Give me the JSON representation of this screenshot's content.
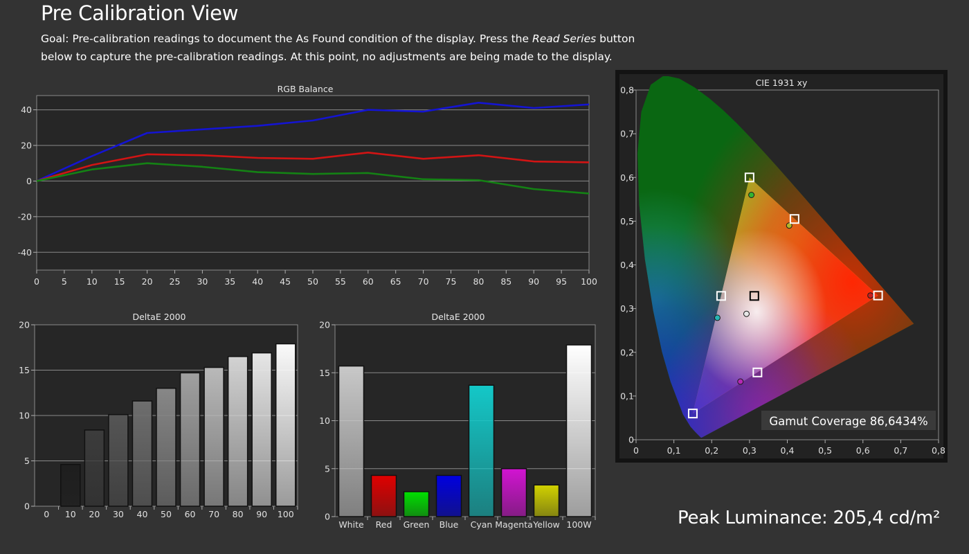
{
  "page": {
    "title": "Pre Calibration View",
    "goal_prefix": "Goal: Pre-calibration readings to document the As Found condition of the display. Press the ",
    "goal_button": "Read Series",
    "goal_suffix": " button below to capture the pre-calibration readings. At this point, no adjustments are being made to the display.",
    "peak_luminance": "Peak Luminance: 205,4 cd/m²"
  },
  "chart_data": [
    {
      "id": "rgb_balance",
      "type": "line",
      "title": "RGB Balance",
      "x": [
        0,
        10,
        20,
        30,
        40,
        50,
        60,
        70,
        80,
        90,
        100
      ],
      "x_ticks": [
        "0",
        "5",
        "10",
        "15",
        "20",
        "25",
        "30",
        "35",
        "40",
        "45",
        "50",
        "55",
        "60",
        "65",
        "70",
        "75",
        "80",
        "85",
        "90",
        "95",
        "100"
      ],
      "y_ticks": [
        "40",
        "20",
        "0",
        "-20",
        "-40"
      ],
      "xlim": [
        0,
        100
      ],
      "ylim": [
        -50,
        48
      ],
      "grid": true,
      "series": [
        {
          "color": "#1414d2",
          "values": [
            0,
            14,
            27,
            29,
            31,
            34,
            40,
            39,
            44,
            41,
            43
          ]
        },
        {
          "color": "#d21414",
          "values": [
            0,
            9,
            15,
            14.5,
            13,
            12.5,
            16,
            12.5,
            14.5,
            11,
            10.5
          ]
        },
        {
          "color": "#148214",
          "values": [
            0,
            6.5,
            10,
            8,
            5,
            4,
            4.5,
            1,
            0.5,
            -4.5,
            -7
          ]
        }
      ]
    },
    {
      "id": "deltae_grayscale",
      "type": "bar",
      "title": "DeltaE 2000",
      "categories": [
        "0",
        "10",
        "20",
        "30",
        "40",
        "50",
        "60",
        "70",
        "80",
        "90",
        "100"
      ],
      "values": [
        0,
        4.6,
        8.4,
        10.1,
        11.6,
        13.0,
        14.7,
        15.3,
        16.5,
        16.9,
        17.9
      ],
      "colors": [
        "#000000",
        "#1e1e1e",
        "#3c3c3c",
        "#555555",
        "#6e6e6e",
        "#878787",
        "#a0a0a0",
        "#b9b9b9",
        "#d2d2d2",
        "#e6e6e6",
        "#fafafa"
      ],
      "y_ticks": [
        "20",
        "15",
        "10",
        "5",
        "0"
      ],
      "ylim": [
        0,
        20
      ],
      "grid": true
    },
    {
      "id": "deltae_colors",
      "type": "bar",
      "title": "DeltaE 2000",
      "categories": [
        "White",
        "Red",
        "Green",
        "Blue",
        "Cyan",
        "Magenta",
        "Yellow",
        "100W"
      ],
      "values": [
        15.7,
        4.3,
        2.6,
        4.3,
        13.7,
        5.0,
        3.3,
        17.9
      ],
      "colors": [
        "#c8c8c8",
        "#e00000",
        "#00e000",
        "#0000e0",
        "#14c8c8",
        "#d214d2",
        "#d2d200",
        "#ffffff"
      ],
      "y_ticks": [
        "20",
        "15",
        "10",
        "5",
        "0"
      ],
      "ylim": [
        0,
        20
      ],
      "grid": true
    },
    {
      "id": "cie1931",
      "type": "scatter",
      "title": "CIE 1931 xy",
      "x_ticks": [
        "0",
        "0,1",
        "0,2",
        "0,3",
        "0,4",
        "0,5",
        "0,6",
        "0,7",
        "0,8"
      ],
      "y_ticks": [
        "0,8",
        "0,7",
        "0,6",
        "0,5",
        "0,4",
        "0,3",
        "0,2",
        "0,1",
        "0"
      ],
      "xlim": [
        0,
        0.8
      ],
      "ylim": [
        0,
        0.8
      ],
      "targets": [
        {
          "name": "Red",
          "x": 0.64,
          "y": 0.33,
          "color": "#ffffff"
        },
        {
          "name": "Green",
          "x": 0.3,
          "y": 0.6,
          "color": "#ffffff"
        },
        {
          "name": "Blue",
          "x": 0.15,
          "y": 0.06,
          "color": "#ffffff"
        },
        {
          "name": "Cyan",
          "x": 0.225,
          "y": 0.329,
          "color": "#ffffff"
        },
        {
          "name": "Magenta",
          "x": 0.321,
          "y": 0.154,
          "color": "#ffffff"
        },
        {
          "name": "Yellow",
          "x": 0.419,
          "y": 0.505,
          "color": "#ffffff"
        },
        {
          "name": "White",
          "x": 0.3127,
          "y": 0.329,
          "color": "#000000"
        }
      ],
      "measured": [
        {
          "name": "Red",
          "x": 0.62,
          "y": 0.33,
          "color": "#c81e1e"
        },
        {
          "name": "Green",
          "x": 0.305,
          "y": 0.56,
          "color": "#32b432"
        },
        {
          "name": "Cyan",
          "x": 0.215,
          "y": 0.279,
          "color": "#28b4b4"
        },
        {
          "name": "Magenta",
          "x": 0.276,
          "y": 0.133,
          "color": "#b428b4"
        },
        {
          "name": "Yellow",
          "x": 0.405,
          "y": 0.49,
          "color": "#b4b428"
        },
        {
          "name": "White",
          "x": 0.292,
          "y": 0.288,
          "color": "#e6e6e6"
        }
      ],
      "annotation": "Gamut Coverage 86,6434%"
    }
  ]
}
